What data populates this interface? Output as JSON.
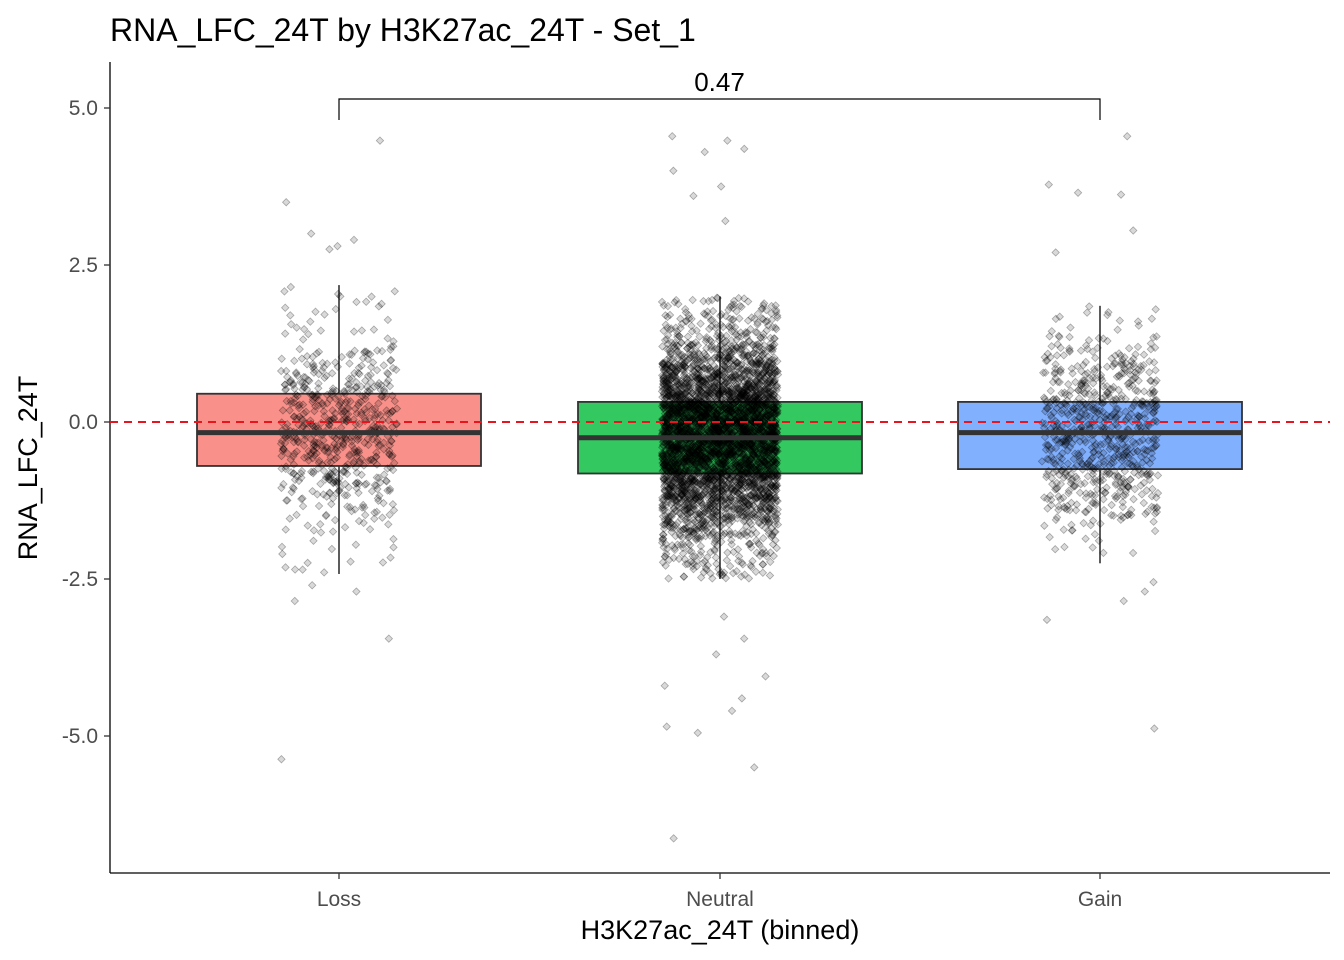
{
  "chart_data": {
    "type": "boxplot",
    "title": "RNA_LFC_24T by H3K27ac_24T - Set_1",
    "xlabel": "H3K27ac_24T (binned)",
    "ylabel": "RNA_LFC_24T",
    "categories": [
      "Loss",
      "Neutral",
      "Gain"
    ],
    "ylim": [
      -7.2,
      5.7
    ],
    "yticks": [
      5.0,
      2.5,
      0.0,
      -2.5,
      -5.0
    ],
    "ytick_labels": [
      "5.0",
      "2.5",
      "0.0",
      "-2.5",
      "-5.0"
    ],
    "reference_line": {
      "y": 0.0,
      "style": "dashed",
      "color": "#e8141e"
    },
    "grid": false,
    "boxes": [
      {
        "category": "Loss",
        "whisker_low": -2.42,
        "q1": -0.7,
        "median": -0.17,
        "q3": 0.45,
        "whisker_high": 2.18,
        "fill": "#f8766d",
        "n_points": 600
      },
      {
        "category": "Neutral",
        "whisker_low": -2.5,
        "q1": -0.82,
        "median": -0.25,
        "q3": 0.32,
        "whisker_high": 2.0,
        "fill": "#00ba38",
        "n_points": 4000
      },
      {
        "category": "Gain",
        "whisker_low": -2.25,
        "q1": -0.75,
        "median": -0.17,
        "q3": 0.32,
        "whisker_high": 1.85,
        "fill": "#619cff",
        "n_points": 700
      }
    ],
    "outliers": [
      {
        "category": "Loss",
        "y": [
          4.48,
          3.5,
          2.9,
          2.8,
          -2.6,
          -2.85,
          -3.45,
          -5.37,
          2.75,
          -2.7,
          3.0
        ]
      },
      {
        "category": "Neutral",
        "y": [
          4.55,
          4.48,
          4.3,
          4.35,
          4.0,
          3.6,
          3.2,
          -3.7,
          -4.05,
          -4.2,
          -4.6,
          -4.85,
          -4.95,
          -5.5,
          -6.63,
          3.75,
          -3.45,
          -3.1,
          -4.4
        ]
      },
      {
        "category": "Gain",
        "y": [
          4.55,
          3.78,
          3.65,
          3.62,
          3.05,
          -2.7,
          -2.85,
          -3.15,
          -4.88,
          2.7,
          -2.55
        ]
      }
    ],
    "comparison": {
      "from": "Loss",
      "to": "Gain",
      "label": "0.47"
    }
  }
}
